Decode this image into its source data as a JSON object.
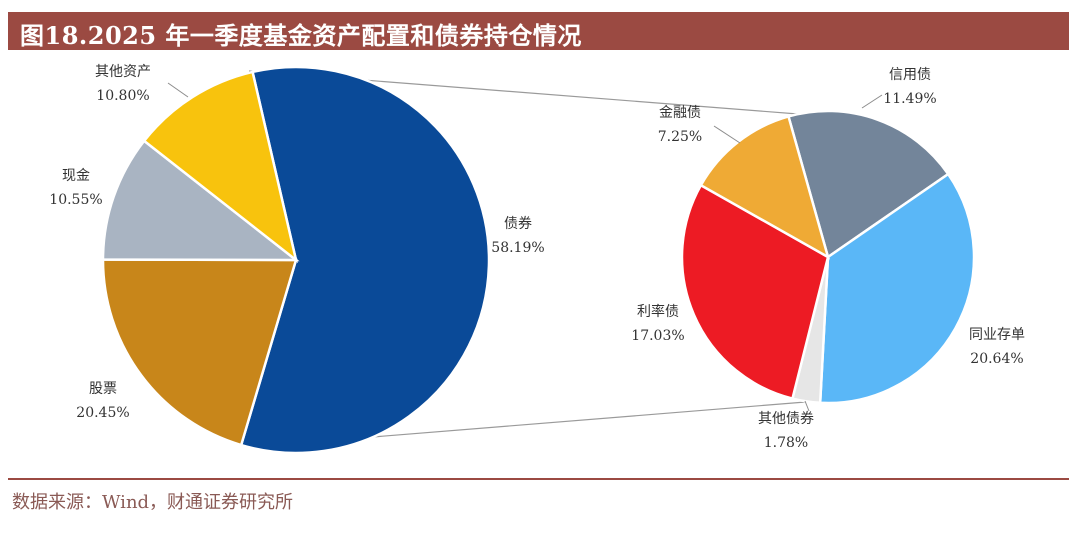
{
  "title": "图18.2025 年一季度基金资产配置和债券持仓情况",
  "source": "数据来源：Wind，财通证券研究所",
  "chart_data": [
    {
      "type": "pie",
      "slices": [
        {
          "label": "债券",
          "value": 58.19,
          "display": "58.19%",
          "color": "#0a4a98"
        },
        {
          "label": "股票",
          "value": 20.45,
          "display": "20.45%",
          "color": "#c8861a"
        },
        {
          "label": "现金",
          "value": 10.55,
          "display": "10.55%",
          "color": "#a9b4c2"
        },
        {
          "label": "其他资产",
          "value": 10.8,
          "display": "10.80%",
          "color": "#f8c30d"
        }
      ]
    },
    {
      "type": "pie",
      "slices": [
        {
          "label": "信用债",
          "value": 11.49,
          "display": "11.49%",
          "color": "#73859a"
        },
        {
          "label": "同业存单",
          "value": 20.64,
          "display": "20.64%",
          "color": "#5ab7f7"
        },
        {
          "label": "其他债券",
          "value": 1.78,
          "display": "1.78%",
          "color": "#e6e6e6"
        },
        {
          "label": "利率债",
          "value": 17.03,
          "display": "17.03%",
          "color": "#ed1b24"
        },
        {
          "label": "金融债",
          "value": 7.25,
          "display": "7.25%",
          "color": "#efaa35"
        }
      ]
    }
  ]
}
